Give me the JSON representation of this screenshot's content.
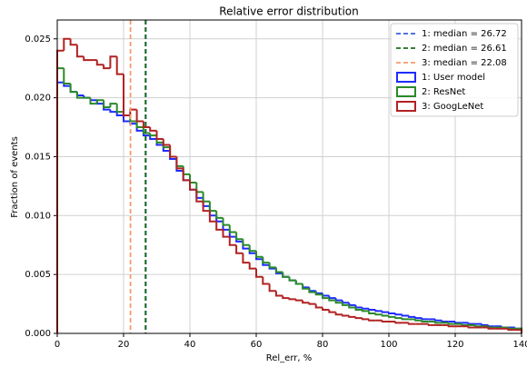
{
  "chart_data": {
    "type": "histogram",
    "title": "Relative error distribution",
    "xlabel": "Rel_err, %",
    "ylabel": "Fraction of events",
    "xlim": [
      0,
      140
    ],
    "ylim": [
      0,
      0.0266
    ],
    "xticks": [
      0,
      20,
      40,
      60,
      80,
      100,
      120,
      140
    ],
    "yticks": [
      {
        "value": 0,
        "label": "0.000"
      },
      {
        "value": 0.005,
        "label": "0.005"
      },
      {
        "value": 0.01,
        "label": "0.010"
      },
      {
        "value": 0.015,
        "label": "0.015"
      },
      {
        "value": 0.02,
        "label": "0.020"
      },
      {
        "value": 0.025,
        "label": "0.025"
      }
    ],
    "grid": true,
    "legend": "upper right",
    "bins": [
      0,
      2,
      4,
      6,
      8,
      10,
      12,
      14,
      16,
      18,
      20,
      22,
      24,
      26,
      28,
      30,
      32,
      34,
      36,
      38,
      40,
      42,
      44,
      46,
      48,
      50,
      52,
      54,
      56,
      58,
      60,
      62,
      64,
      66,
      68,
      70,
      72,
      74,
      76,
      78,
      80,
      82,
      84,
      86,
      88,
      90,
      92,
      94,
      96,
      98,
      100,
      102,
      104,
      106,
      108,
      110,
      112,
      114,
      116,
      118,
      120,
      122,
      124,
      126,
      128,
      130,
      132,
      134,
      136,
      138,
      140
    ],
    "medians": [
      {
        "name": "1: median = 26.72",
        "value": 26.72,
        "color": "#3a5fd9"
      },
      {
        "name": "2: median = 26.61",
        "value": 26.61,
        "color": "#1a6e1a"
      },
      {
        "name": "3: median = 22.08",
        "value": 22.08,
        "color": "#f59a6a"
      }
    ],
    "series": [
      {
        "name": "1: User model",
        "color": "#1f2bff",
        "values": [
          0.0213,
          0.021,
          0.0205,
          0.0202,
          0.02,
          0.0198,
          0.0195,
          0.019,
          0.0188,
          0.0185,
          0.018,
          0.0178,
          0.0172,
          0.0168,
          0.0165,
          0.016,
          0.0155,
          0.0148,
          0.0138,
          0.013,
          0.0122,
          0.0115,
          0.0108,
          0.01,
          0.0095,
          0.0088,
          0.0082,
          0.0078,
          0.0072,
          0.0068,
          0.0063,
          0.0058,
          0.0055,
          0.0051,
          0.0048,
          0.0045,
          0.0042,
          0.0039,
          0.0036,
          0.0034,
          0.0032,
          0.003,
          0.0028,
          0.0026,
          0.0024,
          0.0022,
          0.0021,
          0.002,
          0.0019,
          0.0018,
          0.0017,
          0.0016,
          0.0015,
          0.0014,
          0.0013,
          0.0012,
          0.0012,
          0.0011,
          0.001,
          0.001,
          0.0009,
          0.0009,
          0.0008,
          0.0008,
          0.0007,
          0.0006,
          0.0006,
          0.0005,
          0.0005,
          0.0004
        ]
      },
      {
        "name": "2: ResNet",
        "color": "#2a8a2a",
        "values": [
          0.0225,
          0.0212,
          0.0205,
          0.02,
          0.02,
          0.0195,
          0.0198,
          0.0192,
          0.0195,
          0.0188,
          0.0185,
          0.018,
          0.0175,
          0.017,
          0.0168,
          0.0162,
          0.0158,
          0.015,
          0.0142,
          0.0135,
          0.0128,
          0.012,
          0.0112,
          0.0104,
          0.0098,
          0.0092,
          0.0086,
          0.008,
          0.0075,
          0.007,
          0.0065,
          0.006,
          0.0056,
          0.0052,
          0.0048,
          0.0045,
          0.0042,
          0.0038,
          0.0035,
          0.0033,
          0.003,
          0.0028,
          0.0026,
          0.0024,
          0.0022,
          0.002,
          0.0019,
          0.0017,
          0.0016,
          0.0015,
          0.0014,
          0.0013,
          0.0012,
          0.0012,
          0.0011,
          0.001,
          0.001,
          0.0009,
          0.0009,
          0.0008,
          0.0008,
          0.0007,
          0.0007,
          0.0006,
          0.0006,
          0.0005,
          0.0005,
          0.0005,
          0.0004,
          0.0004
        ]
      },
      {
        "name": "3: GoogLeNet",
        "color": "#b22222",
        "values": [
          0.024,
          0.025,
          0.0245,
          0.0235,
          0.0232,
          0.0232,
          0.0228,
          0.0225,
          0.0235,
          0.022,
          0.0185,
          0.019,
          0.018,
          0.0175,
          0.0172,
          0.0165,
          0.016,
          0.015,
          0.014,
          0.013,
          0.0122,
          0.0112,
          0.0104,
          0.0095,
          0.0088,
          0.0082,
          0.0075,
          0.0068,
          0.006,
          0.0055,
          0.0048,
          0.0042,
          0.0036,
          0.0032,
          0.003,
          0.0029,
          0.0028,
          0.0026,
          0.0025,
          0.0022,
          0.002,
          0.0018,
          0.0016,
          0.0015,
          0.0014,
          0.0013,
          0.0012,
          0.0011,
          0.0011,
          0.001,
          0.001,
          0.0009,
          0.0009,
          0.0008,
          0.0008,
          0.0008,
          0.0007,
          0.0007,
          0.0007,
          0.0006,
          0.0006,
          0.0006,
          0.0005,
          0.0005,
          0.0005,
          0.0004,
          0.0004,
          0.0004,
          0.0003,
          0.0003
        ]
      }
    ]
  }
}
